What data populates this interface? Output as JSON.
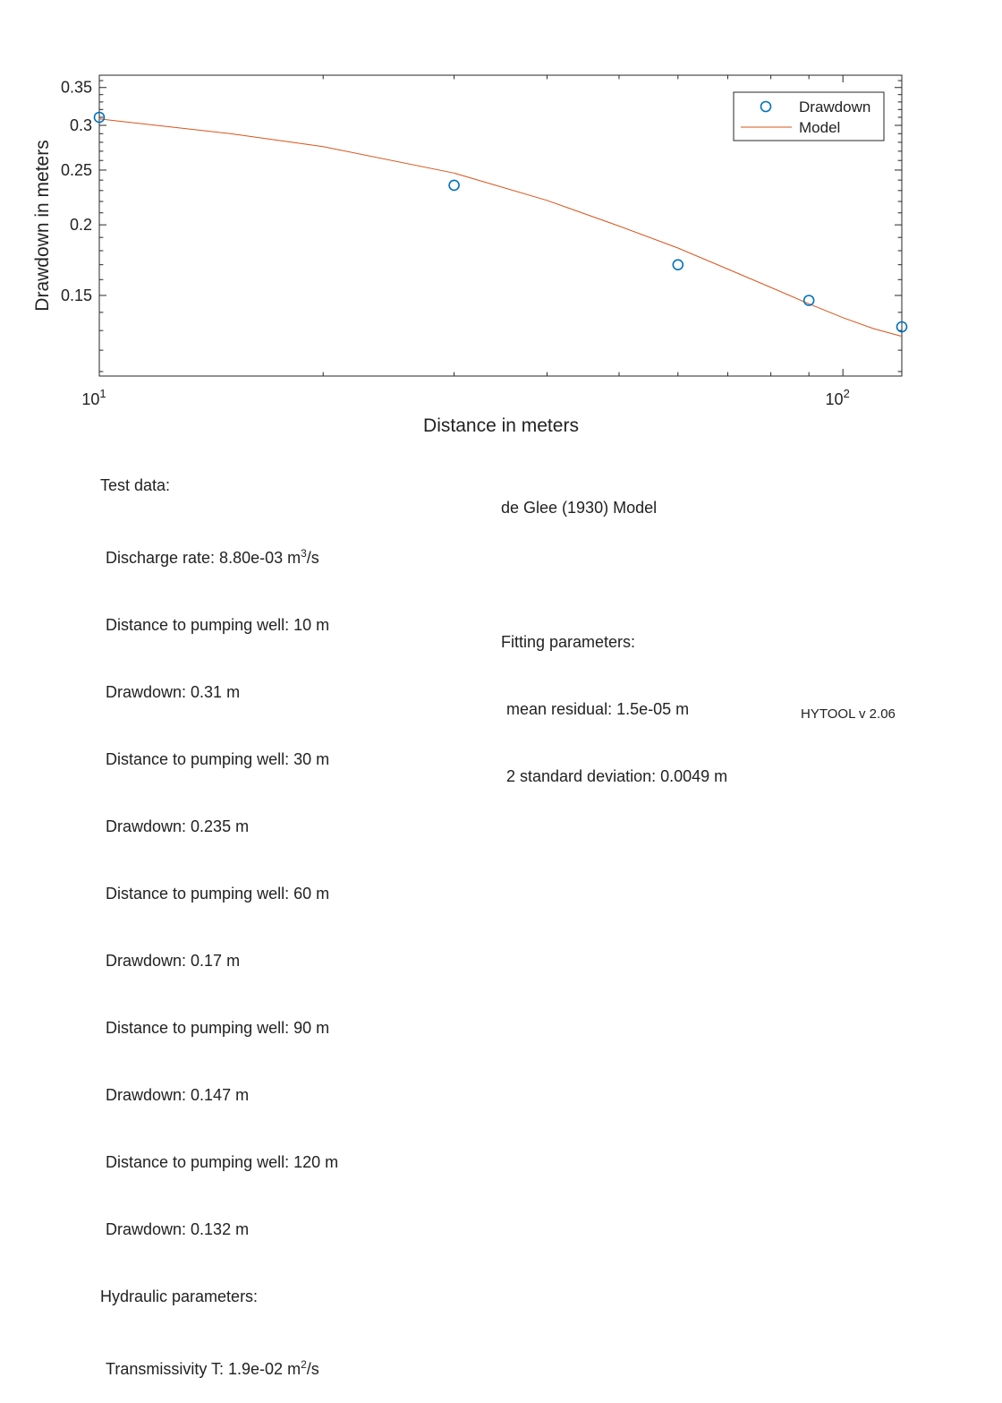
{
  "chart_data": {
    "type": "scatter",
    "title": "",
    "xlabel": "Distance in meters",
    "ylabel": "Drawdown in meters",
    "xscale": "log",
    "yscale": "log",
    "xlim": [
      10,
      120
    ],
    "ylim": [
      0.108,
      0.368
    ],
    "x_ticks": [
      {
        "value": 10,
        "base": "10",
        "exp": "1"
      },
      {
        "value": 100,
        "base": "10",
        "exp": "2"
      }
    ],
    "y_ticks": [
      {
        "value": 0.15,
        "label": "0.15"
      },
      {
        "value": 0.2,
        "label": "0.2"
      },
      {
        "value": 0.25,
        "label": "0.25"
      },
      {
        "value": 0.3,
        "label": "0.3"
      },
      {
        "value": 0.35,
        "label": "0.35"
      }
    ],
    "legend_position": "top-right",
    "series": [
      {
        "name": "Drawdown",
        "kind": "markers",
        "color": "#0072bd",
        "x": [
          10,
          30,
          60,
          90,
          120
        ],
        "y": [
          0.31,
          0.235,
          0.17,
          0.147,
          0.132
        ]
      },
      {
        "name": "Model",
        "kind": "line",
        "color": "#d95319",
        "x": [
          10,
          15,
          20,
          30,
          40,
          50,
          60,
          70,
          80,
          90,
          100,
          110,
          120
        ],
        "y": [
          0.308,
          0.29,
          0.275,
          0.247,
          0.221,
          0.199,
          0.182,
          0.167,
          0.155,
          0.145,
          0.137,
          0.131,
          0.127
        ]
      }
    ]
  },
  "test_data": {
    "heading": "Test data:",
    "discharge_prefix": "Discharge rate: 8.80e-03 m",
    "discharge_exp": "3",
    "discharge_suffix": "/s",
    "lines": [
      "Distance to pumping well: 10 m",
      "Drawdown: 0.31 m",
      "Distance to pumping well: 30 m",
      "Drawdown: 0.235 m",
      "Distance to pumping well: 60 m",
      "Drawdown: 0.17 m",
      "Distance to pumping well: 90 m",
      "Drawdown: 0.147 m",
      "Distance to pumping well: 120 m",
      "Drawdown: 0.132 m"
    ]
  },
  "hydraulic": {
    "heading": "Hydraulic parameters:",
    "transmissivity_prefix": "Transmissivity T: 1.9e-02 m",
    "transmissivity_exp": "2",
    "transmissivity_suffix": "/s"
  },
  "model": {
    "name": "de Glee (1930) Model",
    "fitting_heading": "Fitting parameters:",
    "mean_residual": "mean residual: 1.5e-05 m",
    "std_dev": "2 standard deviation: 0.0049 m"
  },
  "footer": "HYTOOL v 2.06"
}
